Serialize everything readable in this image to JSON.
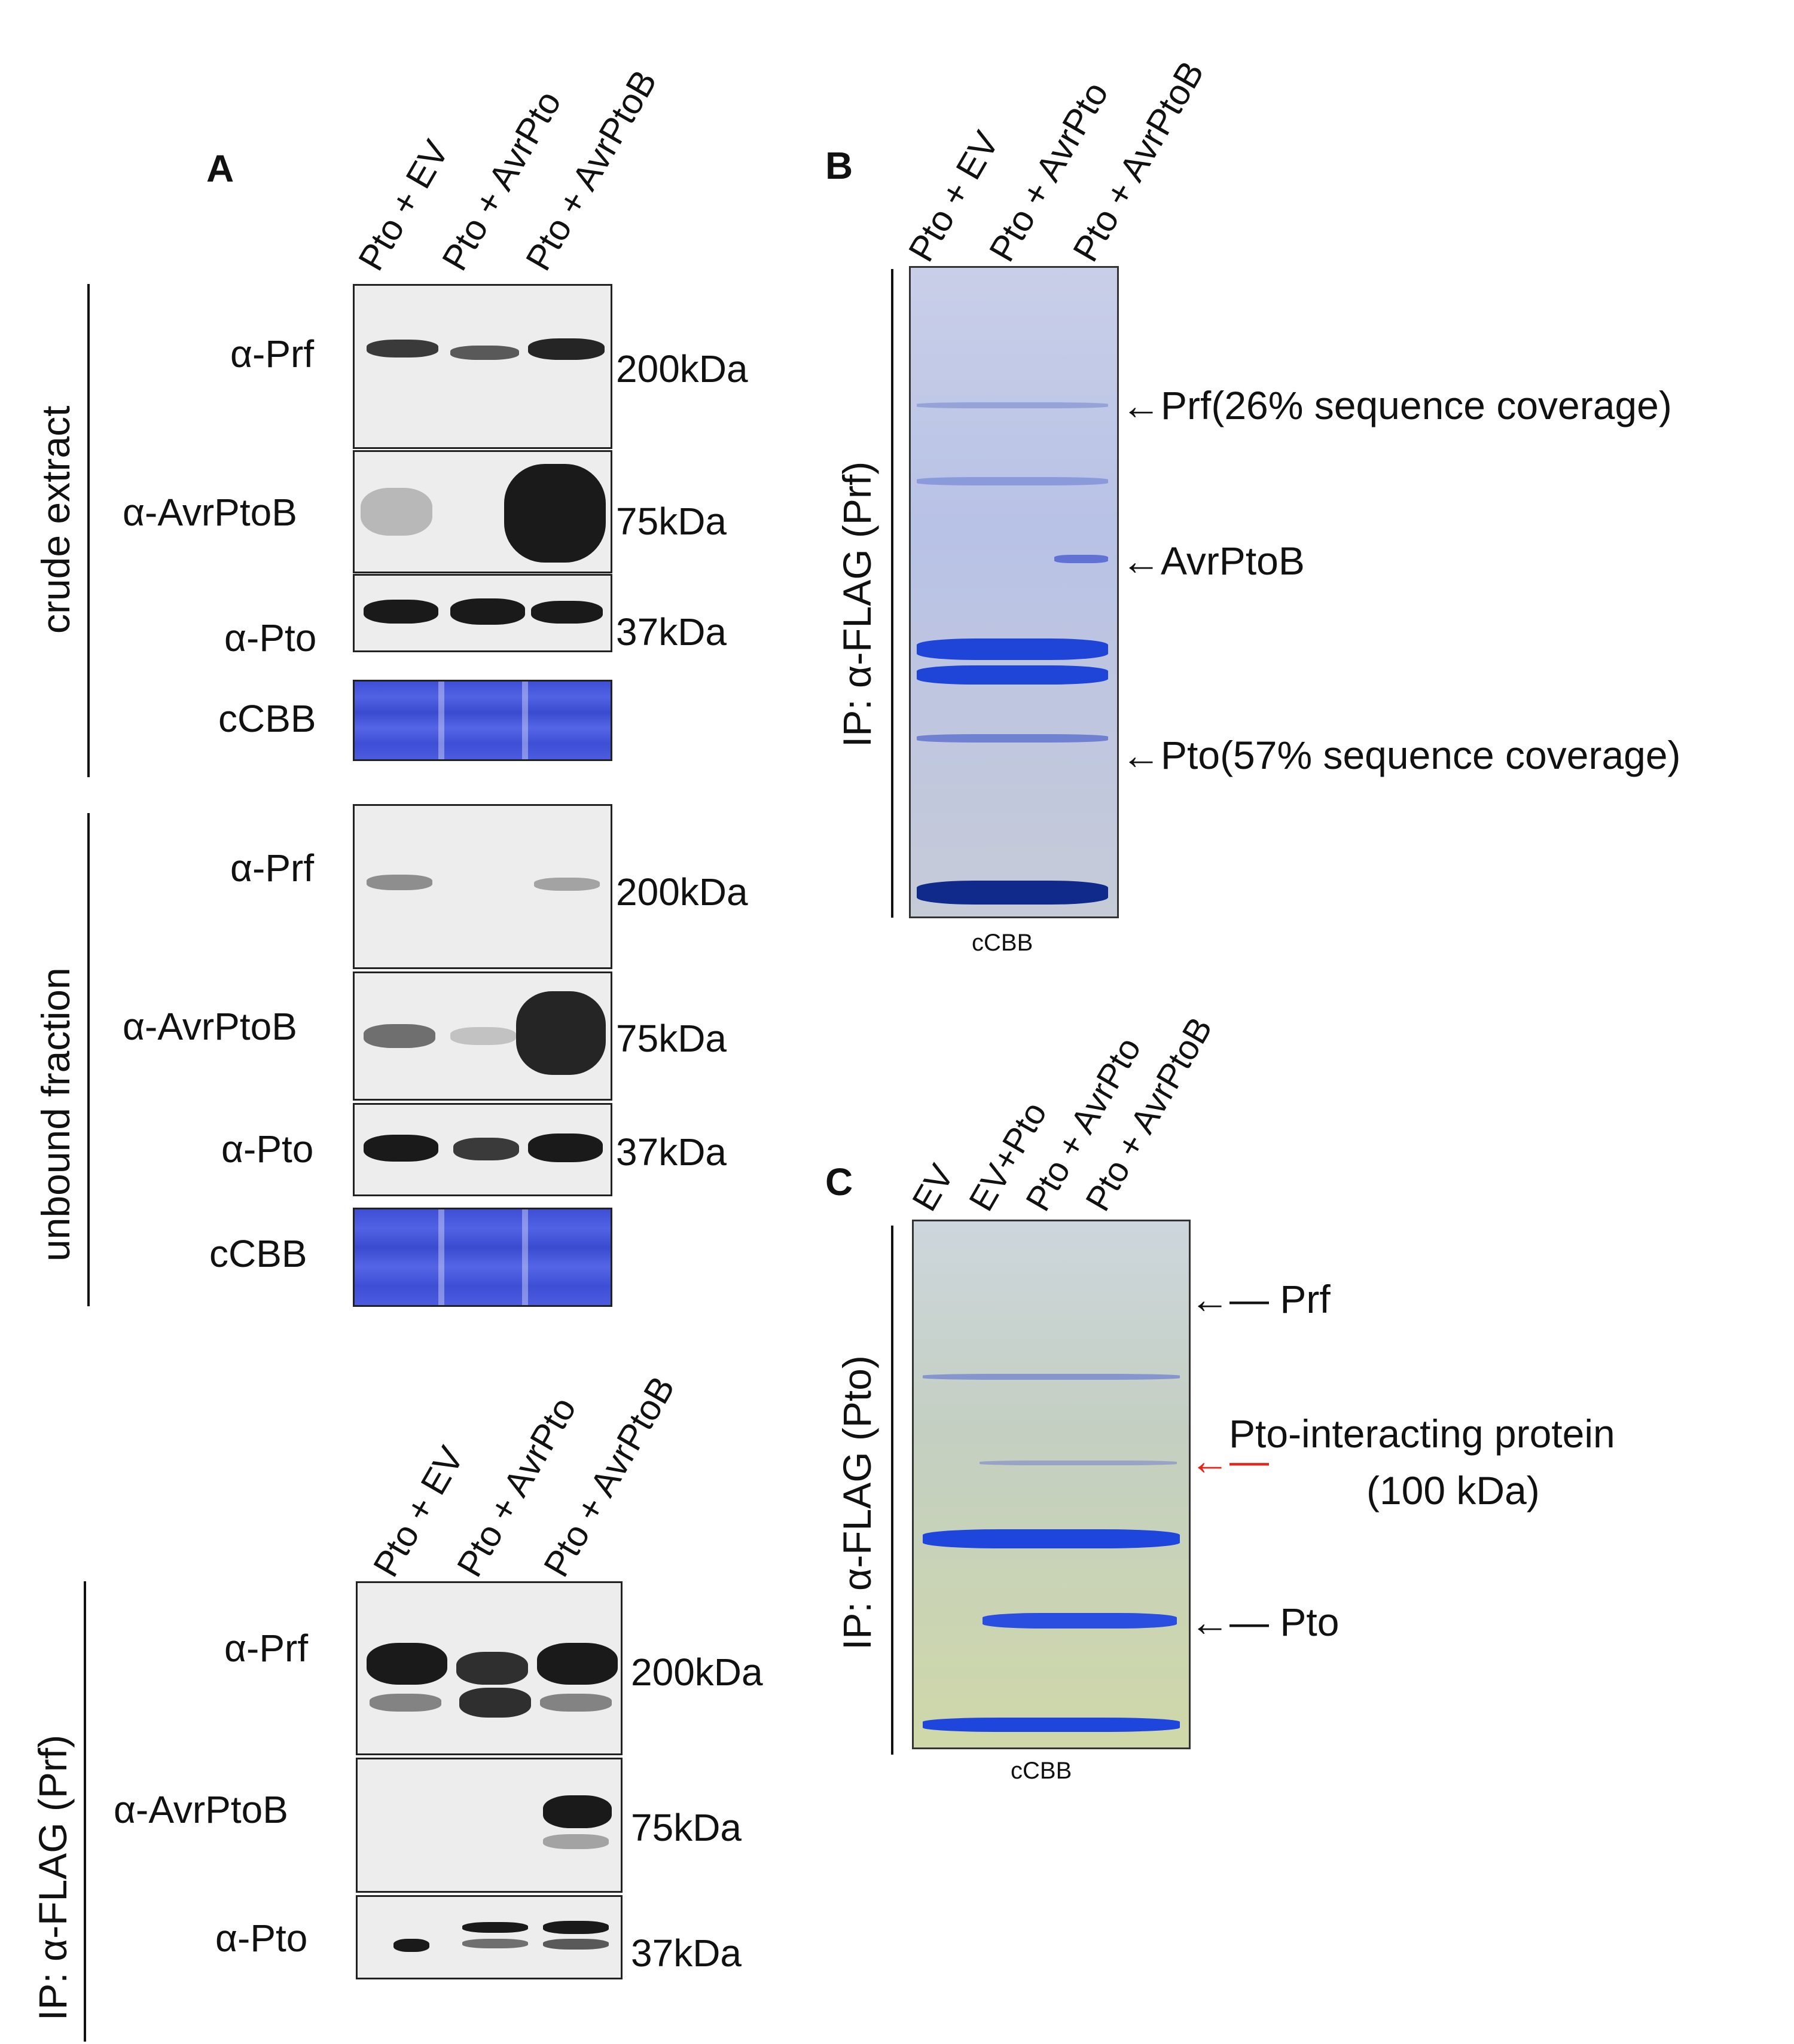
{
  "panel_a": {
    "letter": "A",
    "lanes": [
      "Pto + EV",
      "Pto + AvrPto",
      "Pto + AvrPtoB"
    ],
    "crude": {
      "group": "crude extract",
      "prf": "α-Prf",
      "prf_mw": "200kDa",
      "avrptob": "α-AvrPtoB",
      "avrptob_mw": "75kDa",
      "pto": "α-Pto",
      "pto_mw": "37kDa",
      "cbb": "cCBB"
    },
    "unbound": {
      "group": "unbound fraction",
      "prf": "α-Prf",
      "prf_mw": "200kDa",
      "avrptob": "α-AvrPtoB",
      "avrptob_mw": "75kDa",
      "pto": "α-Pto",
      "pto_mw": "37kDa",
      "cbb": "cCBB"
    },
    "ip": {
      "group": "IP: α-FLAG (Prf)",
      "lanes": [
        "Pto + EV",
        "Pto + AvrPto",
        "Pto + AvrPtoB"
      ],
      "prf": "α-Prf",
      "prf_mw": "200kDa",
      "avrptob": "α-AvrPtoB",
      "avrptob_mw": "75kDa",
      "pto": "α-Pto",
      "pto_mw": "37kDa"
    }
  },
  "panel_b": {
    "letter": "B",
    "lanes": [
      "Pto + EV",
      "Pto + AvrPto",
      "Pto + AvrPtoB"
    ],
    "group": "IP: α-FLAG (Prf)",
    "arrows": [
      "Prf(26% sequence coverage)",
      "AvrPtoB",
      "Pto(57% sequence coverage)"
    ],
    "caption": "cCBB"
  },
  "panel_c": {
    "letter": "C",
    "lanes": [
      "EV",
      "EV+Pto",
      "Pto + AvrPto",
      "Pto + AvrPtoB"
    ],
    "group": "IP: α-FLAG (Pto)",
    "arrows": [
      "Prf",
      "Pto-interacting protein",
      "(100 kDa)",
      "Pto"
    ],
    "arrow_color_highlight": "#e8231a",
    "caption": "cCBB"
  }
}
